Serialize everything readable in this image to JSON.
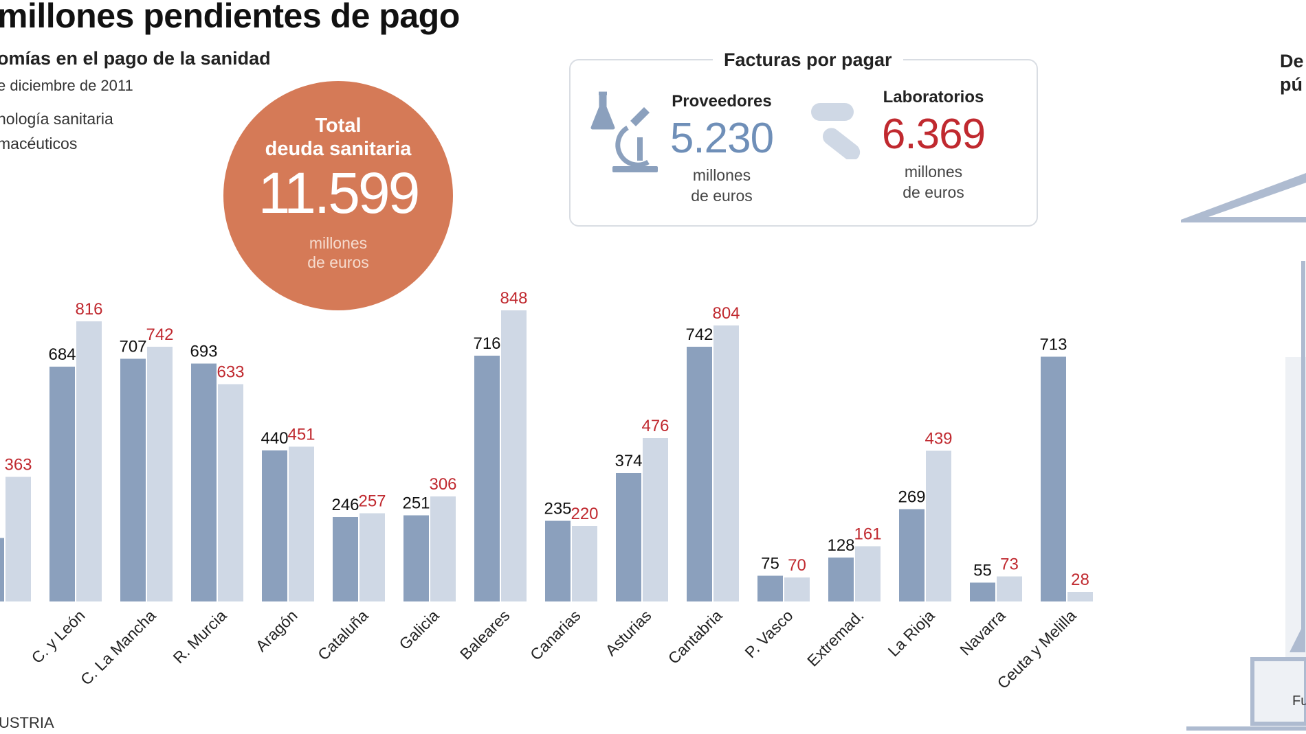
{
  "title": "millones pendientes de pago",
  "subtitle": "omías en el pago de la sanidad",
  "date_note": "e diciembre de 2011",
  "legend": [
    {
      "label": "nología sanitaria",
      "color": "#8ba0bd"
    },
    {
      "label": "macéuticos",
      "color": "#cfd8e5"
    }
  ],
  "source": "USTRIA",
  "total": {
    "title_line1": "Total",
    "title_line2": "deuda sanitaria",
    "value": "11.599",
    "unit_line1": "millones",
    "unit_line2": "de euros"
  },
  "invoices": {
    "title": "Facturas por pagar",
    "proveedores": {
      "label": "Proveedores",
      "value": "5.230",
      "unit_line1": "millones",
      "unit_line2": "de euros",
      "icon": "lab-flask-microscope-icon",
      "color": "#6f8fb8"
    },
    "laboratorios": {
      "label": "Laboratorios",
      "value": "6.369",
      "unit_line1": "millones",
      "unit_line2": "de euros",
      "icon": "pills-icon",
      "color": "#c0292f"
    }
  },
  "right_panel": {
    "heading_line1": "De",
    "heading_line2": "pú",
    "footer_label": "Fu"
  },
  "chart_data": {
    "type": "bar",
    "categories": [
      "",
      "C. y León",
      "C. La Mancha",
      "R. Murcia",
      "Aragón",
      "Cataluña",
      "Galicia",
      "Baleares",
      "Canarias",
      "Asturias",
      "Cantabria",
      "P. Vasco",
      "Extremad.",
      "La Rioja",
      "Navarra",
      "Ceuta y Melilla"
    ],
    "series": [
      {
        "name": "nología sanitaria",
        "color": "#8ba0bd",
        "label_color": "#111111",
        "values": [
          185,
          684,
          707,
          693,
          440,
          246,
          251,
          716,
          235,
          374,
          742,
          75,
          128,
          269,
          55,
          713
        ],
        "labels": [
          "",
          "684",
          "707",
          "693",
          "440",
          "246",
          "251",
          "716",
          "235",
          "374",
          "742",
          "75",
          "128",
          "269",
          "55",
          "713"
        ]
      },
      {
        "name": "macéuticos",
        "color": "#cfd8e5",
        "label_color": "#c0292f",
        "values": [
          363,
          816,
          742,
          633,
          451,
          257,
          306,
          848,
          220,
          476,
          804,
          70,
          161,
          439,
          73,
          28
        ],
        "labels": [
          "363",
          "816",
          "742",
          "633",
          "451",
          "257",
          "306",
          "848",
          "220",
          "476",
          "804",
          "70",
          "161",
          "439",
          "73",
          "28"
        ]
      }
    ],
    "ylim": [
      0,
      900
    ],
    "grid": false,
    "legend": "top-left"
  }
}
